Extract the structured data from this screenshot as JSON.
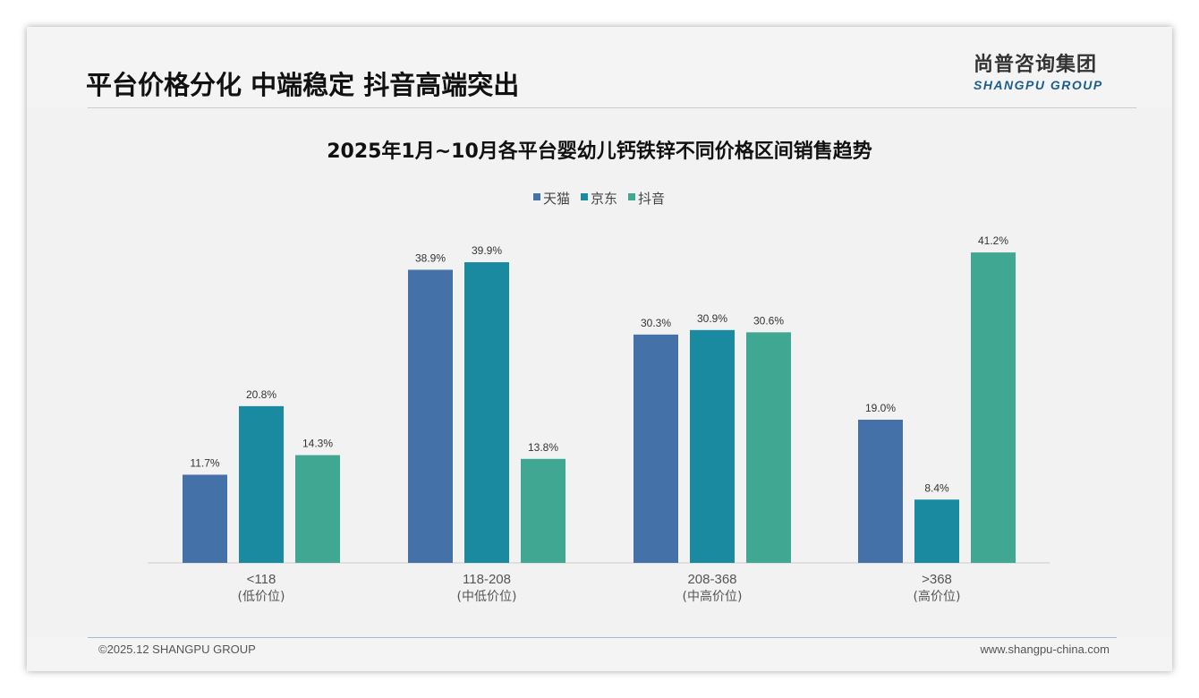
{
  "header": {
    "title": "平台价格分化 中端稳定 抖音高端突出",
    "logo_cn": "尚普咨询集团",
    "logo_en": "SHANGPU GROUP"
  },
  "footer": {
    "copyright": "©2025.12 SHANGPU GROUP",
    "website": "www.shangpu-china.com"
  },
  "chart_data": {
    "type": "bar",
    "title": "2025年1月~10月各平台婴幼儿钙铁锌不同价格区间销售趋势",
    "categories": [
      "<118",
      "118-208",
      "208-368",
      ">368"
    ],
    "category_sublabels": [
      "(低价位)",
      "(中低价位)",
      "(中高价位)",
      "(高价位)"
    ],
    "series": [
      {
        "name": "天猫",
        "color": "#4472a8",
        "values": [
          11.7,
          38.9,
          30.3,
          19.0
        ]
      },
      {
        "name": "京东",
        "color": "#1a8aa0",
        "values": [
          20.8,
          39.9,
          30.9,
          8.4
        ]
      },
      {
        "name": "抖音",
        "color": "#40a892",
        "values": [
          14.3,
          13.8,
          30.6,
          41.2
        ]
      }
    ],
    "unit": "%",
    "legend": "top-center",
    "ylim": [
      0,
      45
    ],
    "grid": false
  }
}
